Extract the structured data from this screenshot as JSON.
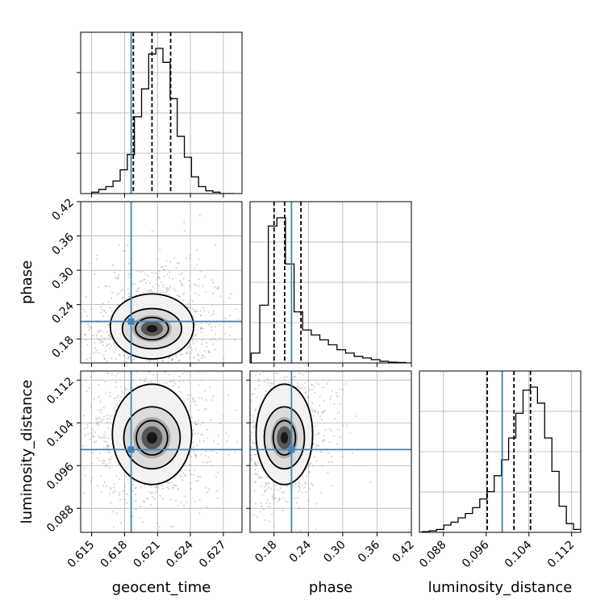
{
  "chart_data": {
    "type": "corner",
    "parameters": [
      "geocent_time",
      "phase",
      "luminosity_distance"
    ],
    "axis_labels": {
      "geocent_time": "geocent_time",
      "phase": "phase",
      "luminosity_distance": "luminosity_distance"
    },
    "ranges": {
      "geocent_time": [
        0.614,
        0.6287
      ],
      "phase": [
        0.138,
        0.42
      ],
      "luminosity_distance": [
        0.0835,
        0.1137
      ]
    },
    "ticks": {
      "geocent_time": [
        "0.615",
        "0.618",
        "0.621",
        "0.624",
        "0.627"
      ],
      "phase": [
        "0.18",
        "0.24",
        "0.30",
        "0.36",
        "0.42"
      ],
      "luminosity_distance": [
        "0.088",
        "0.096",
        "0.104",
        "0.112"
      ]
    },
    "truths": {
      "geocent_time": 0.6186,
      "phase": 0.2105,
      "luminosity_distance": 0.099
    },
    "quantiles": {
      "geocent_time": [
        0.6188,
        0.6205,
        0.6222
      ],
      "phase": [
        0.18,
        0.1985,
        0.227
      ],
      "luminosity_distance": [
        0.0962,
        0.1012,
        0.1043
      ]
    },
    "histograms": {
      "geocent_time": {
        "edges_range": [
          0.615,
          0.628
        ],
        "counts": [
          1,
          3,
          5,
          9,
          17,
          28,
          55,
          75,
          100,
          104,
          94,
          68,
          41,
          26,
          12,
          5,
          2,
          1,
          0,
          0
        ]
      },
      "phase": {
        "edges_range": [
          0.14,
          0.44
        ],
        "counts": [
          6,
          35,
          83,
          88,
          60,
          31,
          20,
          17,
          14,
          11,
          8,
          6,
          4,
          3,
          2,
          1,
          0.5,
          0.3,
          0,
          0
        ]
      },
      "luminosity_distance": {
        "edges_range": [
          0.084,
          0.1137
        ],
        "counts": [
          0.5,
          1,
          2,
          5,
          7,
          10,
          13,
          17,
          23,
          28,
          39,
          50,
          65,
          82,
          98,
          100,
          89,
          65,
          42,
          18,
          6,
          2
        ]
      }
    },
    "grid": true,
    "contour_levels": 3,
    "truth_color": "#4682b4"
  }
}
